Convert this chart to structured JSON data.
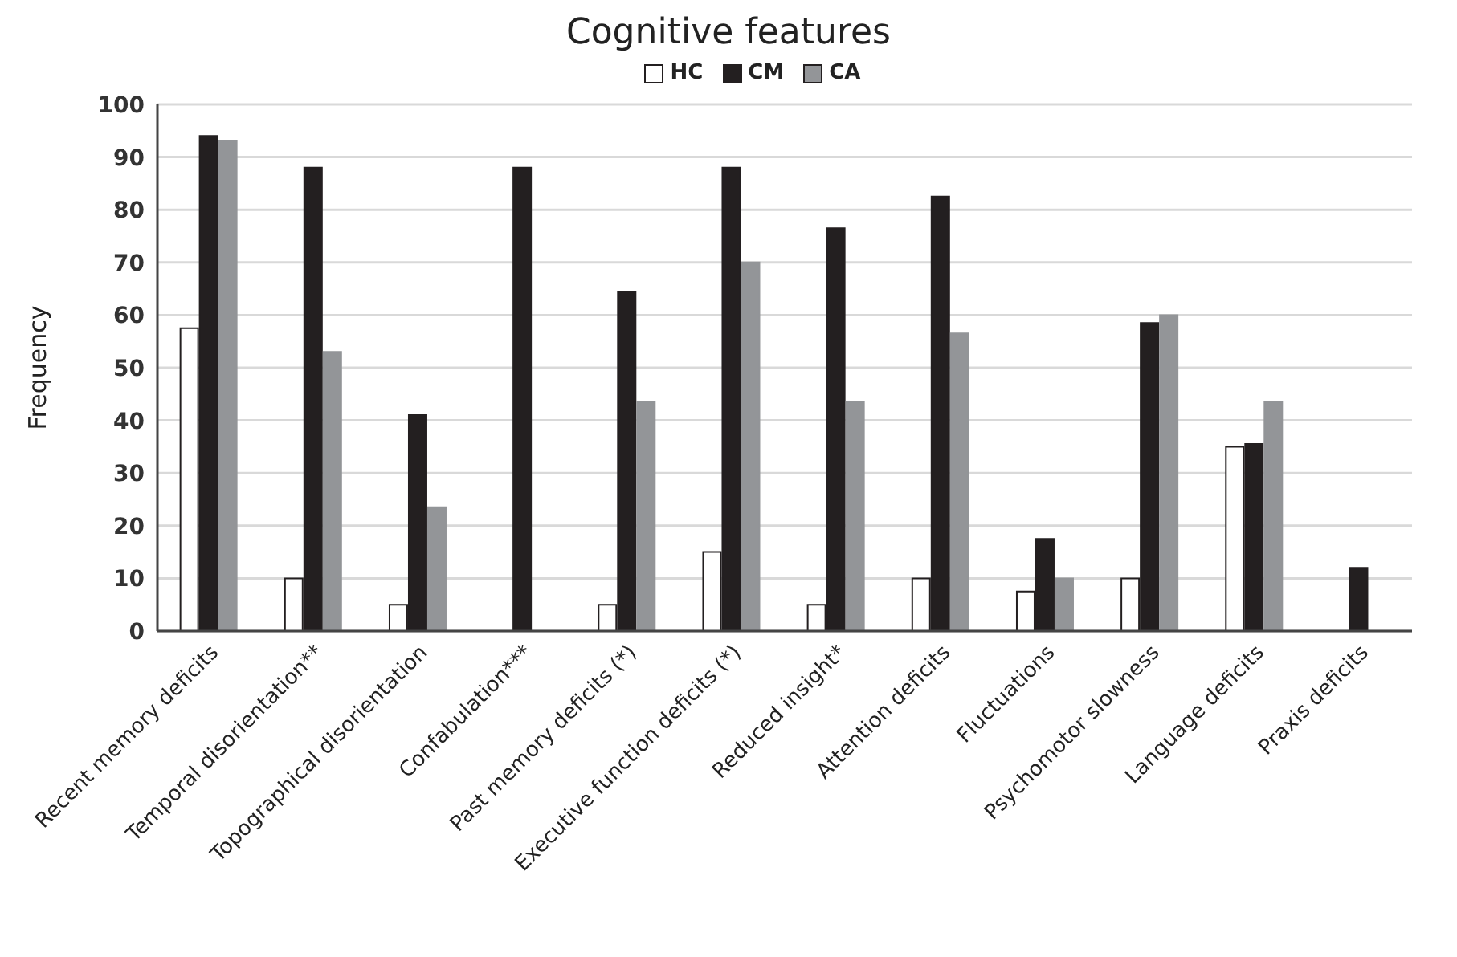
{
  "chart_data": {
    "type": "bar",
    "title": "Cognitive features",
    "ylabel": "Frequency",
    "categories": [
      "Recent memory deficits",
      "Temporal disorientation**",
      "Topographical disorientation",
      "Confabulation***",
      "Past memory deficits (*)",
      "Executive function deficits (*)",
      "Reduced insight*",
      "Attention deficits",
      "Fluctuations",
      "Psychomotor slowness",
      "Language deficits",
      "Praxis deficits"
    ],
    "series": [
      {
        "name": "HC",
        "color": "#ffffff",
        "values": [
          57.5,
          10,
          5,
          0,
          5,
          15,
          5,
          10,
          7.5,
          10,
          35,
          0
        ]
      },
      {
        "name": "CM",
        "color": "#231f20",
        "values": [
          94,
          88,
          41,
          88,
          64.5,
          88,
          76.5,
          82.5,
          17.5,
          58.5,
          35.5,
          12
        ]
      },
      {
        "name": "CA",
        "color": "#939598",
        "values": [
          93,
          53,
          23.5,
          0,
          43.5,
          70,
          43.5,
          56.5,
          10,
          60,
          43.5,
          0
        ]
      }
    ],
    "ylim": [
      0,
      100
    ],
    "yticks": [
      0,
      10,
      20,
      30,
      40,
      50,
      60,
      70,
      80,
      90,
      100
    ],
    "grid": "y",
    "legend": "top"
  }
}
